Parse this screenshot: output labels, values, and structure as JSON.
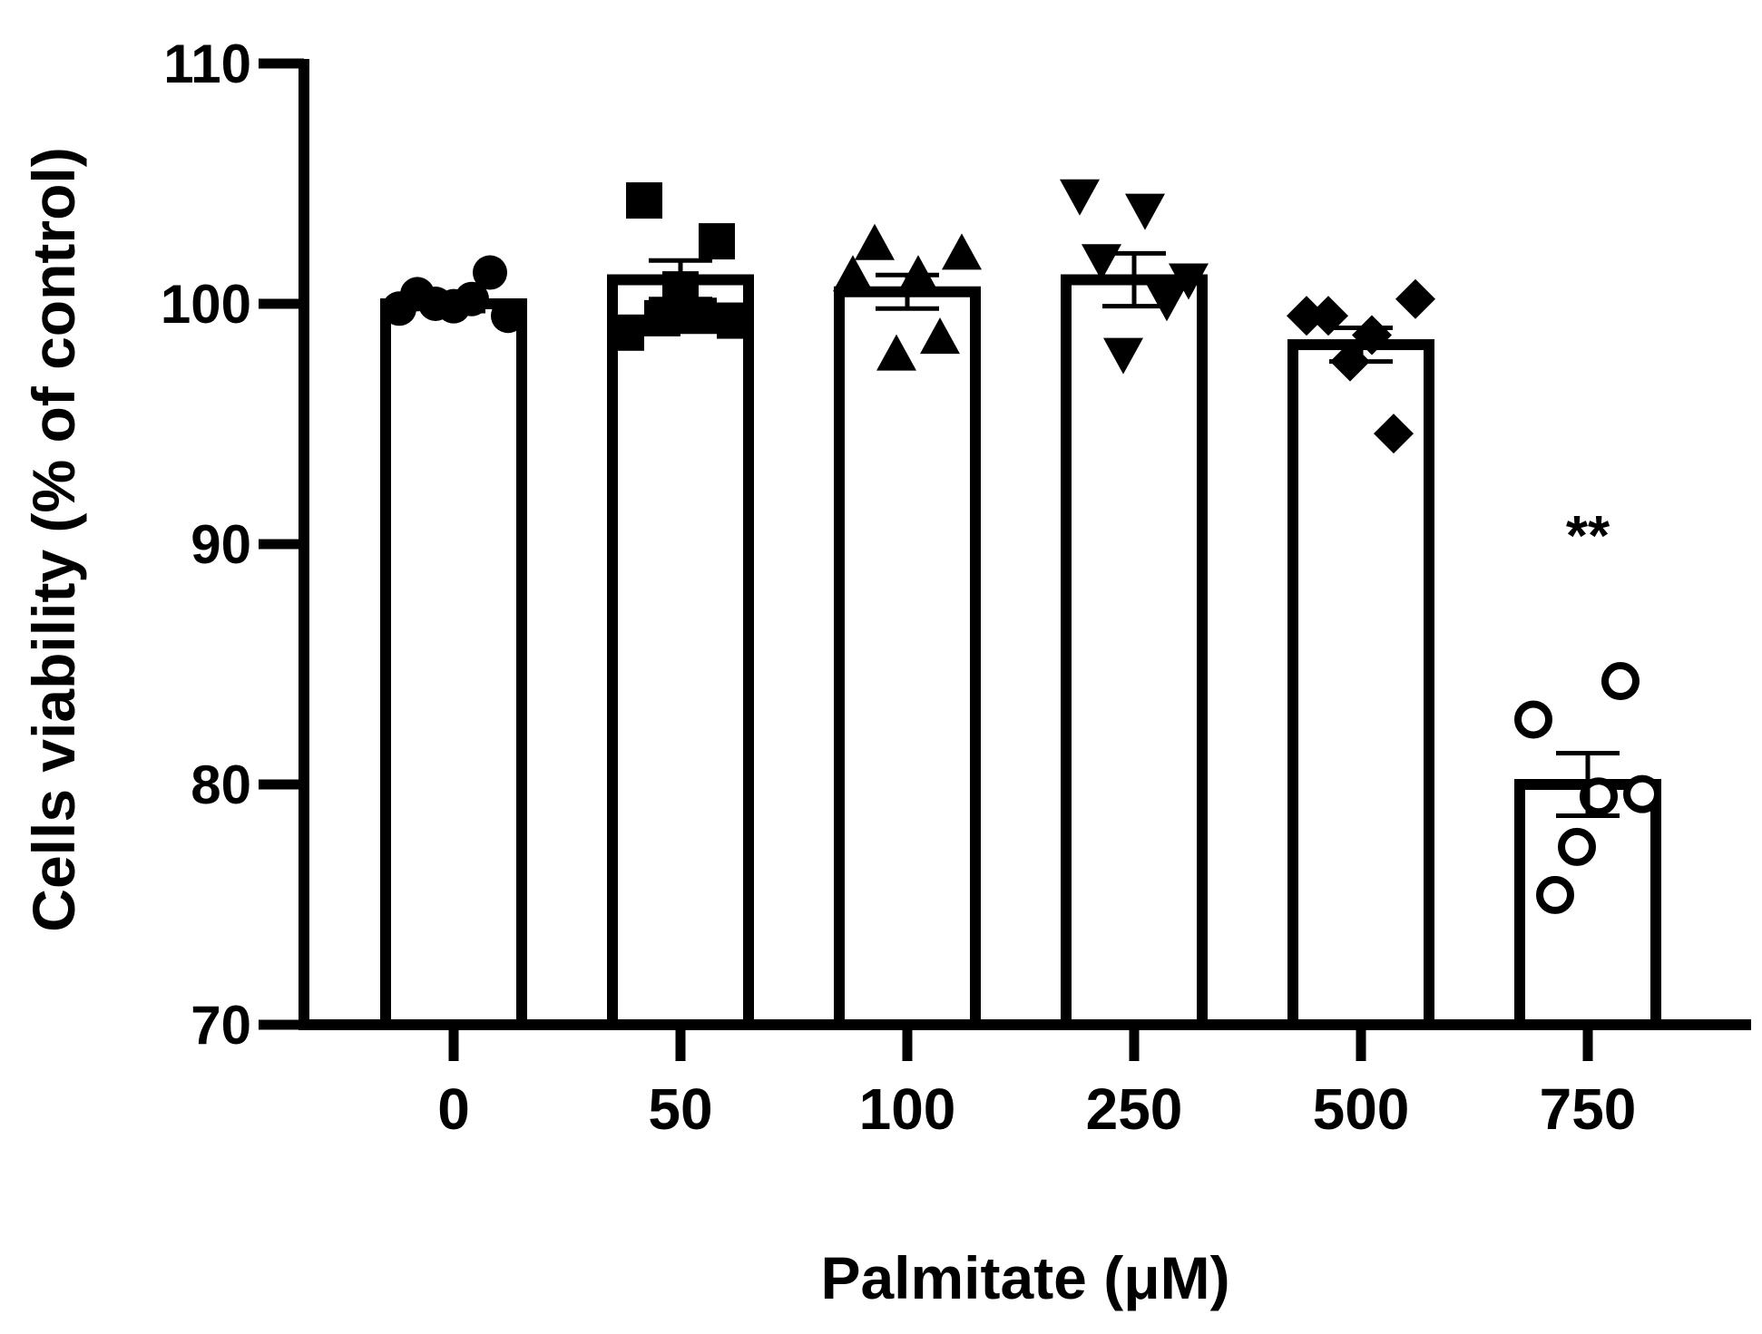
{
  "chart_data": {
    "type": "bar",
    "title": "",
    "xlabel": "Palmitate (μM)",
    "ylabel": "Cells viability (% of control)",
    "ylim": [
      70,
      110
    ],
    "yticks": [
      70,
      80,
      90,
      100,
      110
    ],
    "grid": false,
    "legend": "none",
    "categories": [
      "0",
      "50",
      "100",
      "250",
      "500",
      "750"
    ],
    "values": [
      100,
      101,
      100.5,
      101,
      98.3,
      80
    ],
    "sem": [
      0.3,
      0.8,
      0.7,
      1.1,
      0.7,
      1.3
    ],
    "markers": [
      "circle-filled",
      "square-filled",
      "triangle-up-filled",
      "triangle-down-filled",
      "diamond-filled",
      "circle-open"
    ],
    "points": [
      [
        99.8,
        100.4,
        100,
        99.9,
        100.2,
        101.3,
        99.5
      ],
      [
        98.8,
        104.3,
        99.4,
        100.6,
        99.5,
        102.6,
        99.3
      ],
      [
        101.2,
        102.5,
        97.9,
        101.2,
        98.6,
        102.1
      ],
      [
        104.5,
        101.8,
        97.9,
        103.9,
        100.1,
        101
      ],
      [
        99.5,
        99.5,
        97.6,
        98.7,
        94.6,
        100.2
      ],
      [
        82.7,
        75.4,
        77.4,
        79.5,
        84.3,
        79.6
      ]
    ],
    "annotations": [
      {
        "category": "750",
        "text": "**"
      }
    ],
    "colors": {
      "bar_fill": "#ffffff",
      "stroke": "#000000",
      "marker": "#000000"
    }
  }
}
